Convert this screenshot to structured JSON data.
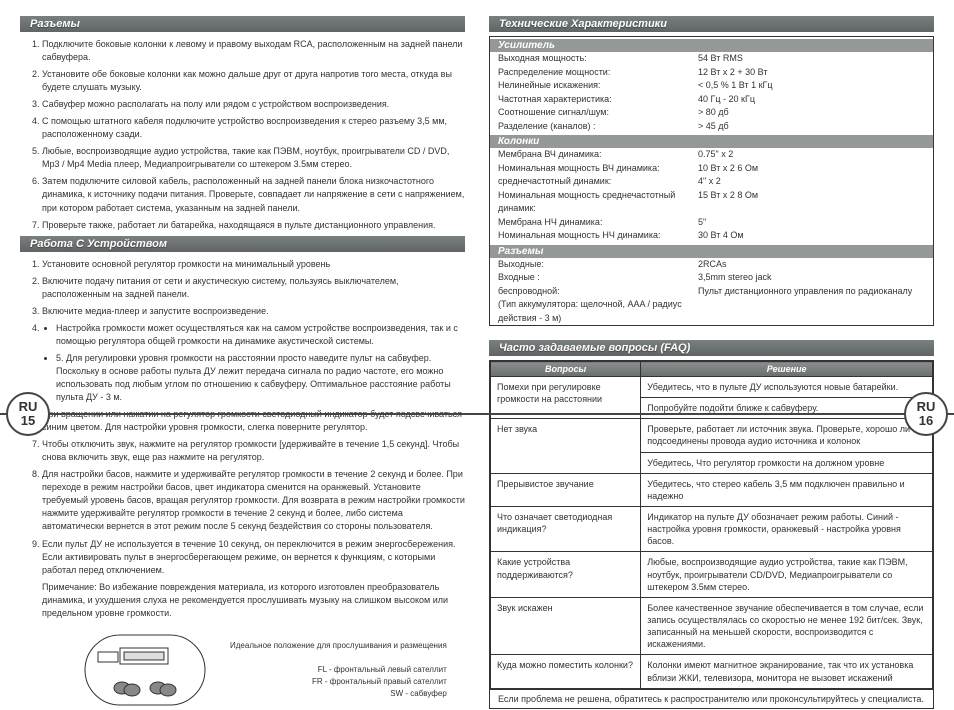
{
  "left": {
    "badge": {
      "lang": "RU",
      "num": "15"
    },
    "sections": {
      "connectors": {
        "title": "Разъемы",
        "items": [
          "Подключите боковые колонки к левому и правому выходам RCA, расположенным на задней панели сабвуфера.",
          "Установите обе боковые колонки как можно дальше друг от друга напротив того места, откуда вы будете слушать музыку.",
          "Сабвуфер можно располагать на полу или рядом с устройством воспроизведения.",
          "С помощью штатного кабеля подключите устройство воспроизведения к стерео разъему 3,5 мм, расположенному сзади.",
          "Любые, воспроизводящие аудио устройства, такие как ПЭВМ, ноутбук, проигрыватели CD / DVD, Mp3 / Mp4 Media плеер, Медиапроигрыватели со штекером 3.5мм стерео.",
          "Затем подключите силовой кабель, расположенный на задней панели блока низкочастотного динамика, к источнику подачи питания.  Проверьте, совпадает ли напряжение в сети с напряжением, при котором работает система, указанным на задней панели.",
          "Проверьте также, работает ли батарейка, находящаяся в пульте дистанционного управления."
        ]
      },
      "operation": {
        "title": "Работа С Устройством",
        "items": [
          "Установите основной регулятор громкости на минимальный уровень",
          "Включите подачу питания от сети и акустическую систему, пользуясь выключателем, расположенным на задней панели.",
          "Включите медиа-плеер и запустите воспроизведение.",
          {
            "text": "",
            "bullets": [
              "Настройка громкости может осуществляться как на самом устройстве воспроизведения, так и с помощью регулятора общей громкости на динамике акустической системы."
            ]
          },
          {
            "text": "5.  Для регулировки уровня громкости на расстоянии просто наведите пульт на сабвуфер. Поскольку в основе работы пульта ДУ лежит передача сигнала по радио частоте, его можно использовать под любым углом по отношению к сабвуферу. Оптимальное расстояние работы пульта ДУ - 3 м.",
            "bullets": []
          },
          "При вращении или нажатии на регулятор громкости светодиодный индикатор будет подсвечиваться синим цветом. Для настройки уровня громкости, слегка поверните регулятор.",
          "Чтобы отключить звук, нажмите на регулятор громкости [удерживайте в течение 1,5 секунд]. Чтобы снова включить звук, еще раз нажмите на регулятор.",
          "Для настройки басов, нажмите и удерживайте регулятор громкости в течение 2 секунд и более. При переходе в режим настройки басов, цвет индикатора сменится на оранжевый. Установите требуемый уровень басов, вращая регулятор громкости. Для возврата в режим настройки громкости нажмите удерживайте регулятор громкости в течение 2 секунд и более, либо система автоматически вернется в этот режим после 5 секунд бездействия со стороны пользователя.",
          "Если пульт ДУ не используется в течение 10 секунд, он переключится в режим энергосбережения. Если активировать пульт в энергосберегающем режиме, он вернется к функциям, с которыми работал перед отключением."
        ],
        "note": "Примечание: Во избежание повреждения материала, из которого изготовлен преобразователь динамика, и ухудшения слуха не рекомендуется прослушивать музыку на слишком высоком или предельном уровне громкости."
      }
    },
    "diagram": {
      "heading": "Идеальное положение для прослушивания и размещения",
      "legend": {
        "fl": "FL - фронтальный левый сателлит",
        "fr": "FR - фронтальный правый сателлит",
        "sw": "SW - сабвуфер"
      }
    }
  },
  "right": {
    "badge": {
      "lang": "RU",
      "num": "16"
    },
    "specs": {
      "title": "Технические Характеристики",
      "groups": [
        {
          "title": "Усилитель",
          "rows": [
            {
              "k": "Выходная мощность:",
              "v": "54 Вт RMS"
            },
            {
              "k": "Распределение мощности:",
              "v": "12 Вт x 2 + 30 Вт"
            },
            {
              "k": "Нелинейные искажения:",
              "v": "< 0,5 % 1 Вт 1 кГц"
            },
            {
              "k": "Частотная характеристика:",
              "v": "40 Гц - 20 кГц"
            },
            {
              "k": "Соотношение сигнал/шум:",
              "v": "> 80 дб"
            },
            {
              "k": "Разделение (каналов) :",
              "v": "> 45 дб"
            }
          ]
        },
        {
          "title": "Колонки",
          "rows": [
            {
              "k": "Мембрана ВЧ динамика:",
              "v": "0.75\" x 2"
            },
            {
              "k": "Номинальная мощность ВЧ динамика:",
              "v": "10 Вт x 2   6 Ом"
            },
            {
              "k": "среднечастотный динамик:",
              "v": "4\" x 2"
            },
            {
              "k": "Номинальная мощность среднечастотный динамик:",
              "v": "15 Вт x 2   8 Ом"
            },
            {
              "k": "Мембрана НЧ динамика:",
              "v": "5\""
            },
            {
              "k": "Номинальная мощность НЧ динамика:",
              "v": "30 Вт   4 Ом"
            }
          ]
        },
        {
          "title": "Разъемы",
          "rows": [
            {
              "k": "Выходные:",
              "v": "2RCAs"
            },
            {
              "k": "Входные :",
              "v": "3,5mm stereo jack"
            },
            {
              "k": "беспроводной:",
              "v": "Пульт дистанционного управления по радиоканалу"
            },
            {
              "k": "(Тип аккумулятора: щелочной, AAA /  радиус действия - 3 м)",
              "v": ""
            }
          ]
        }
      ]
    },
    "faq": {
      "title": "Часто задаваемые вопросы (FAQ)",
      "head": {
        "q": "Вопросы",
        "a": "Решение"
      },
      "rows": [
        {
          "q": "Помехи при регулировке громкости на расстоянии",
          "a": "Убедитесь, что в пульте ДУ используются новые батарейки.",
          "rowspan": 1
        },
        {
          "q": "",
          "a": "Попробуйте подойти ближе к сабвуферу."
        },
        {
          "q": "Нет звука",
          "a": "Проверьте, работает ли источник звука. Проверьте, хорошо ли подсоединены провода аудио источника и колонок"
        },
        {
          "q": "",
          "a": "Убедитесь, Что регулятор громкости на должном уровне"
        },
        {
          "q": "Прерывистое звучание",
          "a": "Убедитесь, что стерео кабель 3,5 мм подключен правильно и надежно"
        },
        {
          "q": "Что означает светодиодная индикация?",
          "a": "Индикатор на пульте ДУ обозначает режим работы. Синий - настройка уровня громкости, оранжевый - настройка уровня басов."
        },
        {
          "q": "Какие устройства поддерживаются?",
          "a": "Любые, воспроизводящие аудио устройства, такие как ПЭВМ, ноутбук, проигрыватели CD/DVD, Медиапроигрыватели со штекером 3.5мм стерео."
        },
        {
          "q": "Звук искажен",
          "a": "Более качественное звучание обеспечивается в том случае, если запись осуществлялась со скоростью не менее 192 бит/сек.  Звук, записанный на меньшей скорости, воспроизводится с искажениями."
        },
        {
          "q": "Куда можно поместить колонки?",
          "a": "Колонки имеют магнитное экранирование, так что их установка вблизи ЖКИ, телевизора, монитора не вызовет искажений"
        }
      ],
      "footer": "Если проблема не решена, обратитесь к распространителю или проконсультируйтесь у специалиста."
    }
  },
  "colors": {
    "header_grad_top": "#7a7f80",
    "header_grad_bot": "#5f6465",
    "subheader": "#949899",
    "border": "#333333",
    "text": "#333333"
  }
}
